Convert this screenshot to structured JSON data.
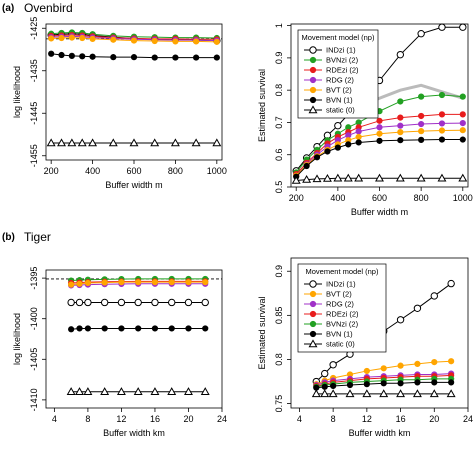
{
  "panels": [
    {
      "tag": "(a)",
      "title": "Ovenbird"
    },
    {
      "tag": "(b)",
      "title": "Tiger"
    }
  ],
  "colors": {
    "INDzi": "#000000",
    "BVNzi": "#22a022",
    "RDEzi": "#e81c1c",
    "RDG": "#a030c8",
    "BVT": "#ffa500",
    "BVN": "#000000",
    "static": "#000000",
    "dashed": "#000000",
    "bvn_grey": "#bbbbbb"
  },
  "chart_data": [
    {
      "type": "line",
      "title": "",
      "xlabel": "Buffer width  m",
      "ylabel": "log likelihood",
      "xlim": [
        175,
        1025
      ],
      "ylim": [
        -1456,
        -1424
      ],
      "xticks": [
        200,
        400,
        600,
        800,
        1000
      ],
      "yticks": [
        -1425,
        -1435,
        -1445,
        -1455
      ],
      "grid": false,
      "dashed_hline": -1427.5,
      "x": [
        200,
        250,
        300,
        350,
        400,
        500,
        600,
        700,
        800,
        900,
        1000
      ],
      "series": [
        {
          "key": "INDzi",
          "marker": "open-circle",
          "values": [
            -1426.6,
            -1426.4,
            -1426.3,
            -1426.4,
            -1426.7,
            -1427.1,
            -1427.4,
            -1427.6,
            -1427.7,
            -1427.8,
            -1427.9
          ]
        },
        {
          "key": "BVNzi",
          "marker": "filled-circle",
          "values": [
            -1426.3,
            -1426.1,
            -1426.0,
            -1426.1,
            -1426.4,
            -1426.8,
            -1427.0,
            -1427.1,
            -1427.2,
            -1427.2,
            -1427.3
          ]
        },
        {
          "key": "RDEzi",
          "marker": "filled-circle",
          "values": [
            -1426.8,
            -1426.7,
            -1426.6,
            -1426.7,
            -1426.9,
            -1427.2,
            -1427.4,
            -1427.5,
            -1427.5,
            -1427.6,
            -1427.6
          ]
        },
        {
          "key": "RDG",
          "marker": "filled-circle",
          "values": [
            -1427.1,
            -1427.0,
            -1426.9,
            -1427.0,
            -1427.2,
            -1427.4,
            -1427.6,
            -1427.7,
            -1427.8,
            -1427.8,
            -1427.9
          ]
        },
        {
          "key": "BVT",
          "marker": "filled-circle",
          "values": [
            -1427.4,
            -1427.3,
            -1427.2,
            -1427.3,
            -1427.5,
            -1427.7,
            -1427.9,
            -1428.0,
            -1428.1,
            -1428.1,
            -1428.2
          ]
        },
        {
          "key": "BVN",
          "marker": "filled-circle",
          "values": [
            -1431.0,
            -1431.3,
            -1431.5,
            -1431.6,
            -1431.7,
            -1431.8,
            -1431.8,
            -1431.9,
            -1431.9,
            -1431.9,
            -1431.9
          ]
        },
        {
          "key": "static",
          "marker": "open-triangle",
          "values": [
            -1452.0,
            -1452.0,
            -1452.0,
            -1452.0,
            -1452.0,
            -1452.0,
            -1452.0,
            -1452.0,
            -1452.0,
            -1452.0,
            -1452.0
          ]
        }
      ]
    },
    {
      "type": "line",
      "title": "",
      "xlabel": "Buffer width  m",
      "ylabel": "Estimated survival",
      "xlim": [
        175,
        1025
      ],
      "ylim": [
        0.5,
        1.005
      ],
      "xticks": [
        200,
        400,
        600,
        800,
        1000
      ],
      "yticks": [
        0.5,
        0.6,
        0.7,
        0.8,
        0.9,
        1.0
      ],
      "grid": false,
      "legend_title": "Movement model (np)",
      "legend_position": "top-left",
      "x": [
        200,
        250,
        300,
        350,
        400,
        450,
        500,
        600,
        700,
        800,
        900,
        1000
      ],
      "series": [
        {
          "key": "INDzi",
          "name": "INDzi (1)",
          "marker": "open-circle",
          "values": [
            0.55,
            0.59,
            0.625,
            0.66,
            0.69,
            0.725,
            0.755,
            0.83,
            0.91,
            0.975,
            0.995,
            0.995
          ]
        },
        {
          "key": "BVNzi",
          "name": "BVNzi (2)",
          "marker": "filled-circle",
          "values": [
            0.545,
            0.585,
            0.615,
            0.645,
            0.665,
            0.685,
            0.7,
            0.735,
            0.765,
            0.78,
            0.785,
            0.78
          ]
        },
        {
          "key": "RDEzi",
          "name": "RDEzi (2)",
          "marker": "filled-circle",
          "values": [
            0.54,
            0.575,
            0.605,
            0.635,
            0.655,
            0.67,
            0.685,
            0.705,
            0.715,
            0.72,
            0.725,
            0.725
          ]
        },
        {
          "key": "RDG",
          "name": "RDG (2)",
          "marker": "filled-circle",
          "values": [
            0.535,
            0.57,
            0.6,
            0.625,
            0.645,
            0.66,
            0.672,
            0.685,
            0.69,
            0.695,
            0.697,
            0.698
          ]
        },
        {
          "key": "BVT",
          "name": "BVT (2)",
          "marker": "filled-circle",
          "values": [
            0.535,
            0.568,
            0.595,
            0.615,
            0.632,
            0.645,
            0.655,
            0.665,
            0.67,
            0.673,
            0.675,
            0.676
          ]
        },
        {
          "key": "BVN",
          "name": "BVN (1)",
          "marker": "filled-circle",
          "values": [
            0.532,
            0.565,
            0.592,
            0.61,
            0.622,
            0.632,
            0.638,
            0.643,
            0.645,
            0.646,
            0.647,
            0.647
          ]
        },
        {
          "key": "static",
          "name": "static (0)",
          "marker": "open-triangle",
          "values": [
            0.52,
            0.523,
            0.525,
            0.526,
            0.527,
            0.527,
            0.527,
            0.527,
            0.527,
            0.527,
            0.527,
            0.527
          ]
        }
      ],
      "extra_line": {
        "key": "bvn_grey",
        "x": [
          500,
          600,
          700,
          800,
          900,
          1000
        ],
        "values": [
          0.75,
          0.775,
          0.8,
          0.815,
          0.795,
          0.775
        ]
      }
    },
    {
      "type": "line",
      "title": "",
      "xlabel": "Buffer width km",
      "ylabel": "log likelihood",
      "xlim": [
        3,
        24
      ],
      "ylim": [
        -1411,
        -1394
      ],
      "xticks": [
        4,
        8,
        12,
        16,
        20,
        24
      ],
      "yticks": [
        -1395,
        -1400,
        -1405,
        -1410
      ],
      "grid": false,
      "dashed_hline": -1395.1,
      "x": [
        6,
        7,
        8,
        10,
        12,
        14,
        16,
        18,
        20,
        22
      ],
      "series": [
        {
          "key": "BVNzi",
          "marker": "filled-circle",
          "values": [
            -1395.3,
            -1395.25,
            -1395.2,
            -1395.15,
            -1395.12,
            -1395.1,
            -1395.1,
            -1395.1,
            -1395.1,
            -1395.1
          ]
        },
        {
          "key": "RDEzi",
          "marker": "filled-circle",
          "values": [
            -1395.6,
            -1395.55,
            -1395.5,
            -1395.45,
            -1395.42,
            -1395.4,
            -1395.4,
            -1395.4,
            -1395.4,
            -1395.4
          ]
        },
        {
          "key": "RDG",
          "marker": "filled-circle",
          "values": [
            -1395.9,
            -1395.85,
            -1395.8,
            -1395.75,
            -1395.72,
            -1395.7,
            -1395.7,
            -1395.7,
            -1395.7,
            -1395.7
          ]
        },
        {
          "key": "BVT",
          "marker": "filled-circle",
          "values": [
            -1395.8,
            -1395.7,
            -1395.6,
            -1395.55,
            -1395.5,
            -1395.5,
            -1395.5,
            -1395.5,
            -1395.5,
            -1395.5
          ]
        },
        {
          "key": "INDzi",
          "marker": "open-circle",
          "values": [
            -1398.0,
            -1398.0,
            -1398.0,
            -1398.0,
            -1398.0,
            -1398.0,
            -1398.0,
            -1398.0,
            -1398.0,
            -1398.0
          ]
        },
        {
          "key": "BVN",
          "marker": "filled-circle",
          "values": [
            -1401.3,
            -1401.2,
            -1401.2,
            -1401.2,
            -1401.2,
            -1401.2,
            -1401.2,
            -1401.2,
            -1401.2,
            -1401.2
          ]
        },
        {
          "key": "static",
          "marker": "open-triangle",
          "values": [
            -1409.0,
            -1409.0,
            -1409.0,
            -1409.0,
            -1409.0,
            -1409.0,
            -1409.0,
            -1409.0,
            -1409.0,
            -1409.0
          ]
        }
      ]
    },
    {
      "type": "line",
      "title": "",
      "xlabel": "Buffer width km",
      "ylabel": "Estimated survival",
      "xlim": [
        3,
        24
      ],
      "ylim": [
        0.745,
        0.915
      ],
      "xticks": [
        4,
        8,
        12,
        16,
        20,
        24
      ],
      "yticks": [
        0.75,
        0.8,
        0.85,
        0.9
      ],
      "grid": false,
      "legend_title": "Movement model (np)",
      "legend_position": "top-left",
      "x": [
        6,
        7,
        8,
        10,
        12,
        14,
        16,
        18,
        20,
        22
      ],
      "series": [
        {
          "key": "INDzi",
          "name": "INDzi (1)",
          "marker": "open-circle",
          "values": [
            0.775,
            0.784,
            0.794,
            0.806,
            0.819,
            0.832,
            0.845,
            0.858,
            0.872,
            0.886
          ]
        },
        {
          "key": "BVT",
          "name": "BVT (2)",
          "marker": "filled-circle",
          "values": [
            0.772,
            0.776,
            0.779,
            0.783,
            0.787,
            0.79,
            0.793,
            0.795,
            0.797,
            0.798
          ]
        },
        {
          "key": "RDG",
          "name": "RDG (2)",
          "marker": "filled-circle",
          "values": [
            0.771,
            0.774,
            0.776,
            0.778,
            0.78,
            0.781,
            0.782,
            0.783,
            0.783,
            0.784
          ]
        },
        {
          "key": "RDEzi",
          "name": "RDEzi (2)",
          "marker": "filled-circle",
          "values": [
            0.77,
            0.772,
            0.774,
            0.776,
            0.778,
            0.779,
            0.78,
            0.781,
            0.781,
            0.782
          ]
        },
        {
          "key": "BVNzi",
          "name": "BVNzi (2)",
          "marker": "filled-circle",
          "values": [
            0.769,
            0.771,
            0.772,
            0.774,
            0.775,
            0.776,
            0.777,
            0.777,
            0.778,
            0.778
          ]
        },
        {
          "key": "BVN",
          "name": "BVN (1)",
          "marker": "filled-circle",
          "values": [
            0.768,
            0.769,
            0.77,
            0.771,
            0.772,
            0.773,
            0.773,
            0.774,
            0.774,
            0.774
          ]
        },
        {
          "key": "static",
          "name": "static (0)",
          "marker": "open-triangle",
          "values": [
            0.761,
            0.761,
            0.761,
            0.761,
            0.761,
            0.761,
            0.761,
            0.761,
            0.761,
            0.761
          ]
        }
      ]
    }
  ]
}
